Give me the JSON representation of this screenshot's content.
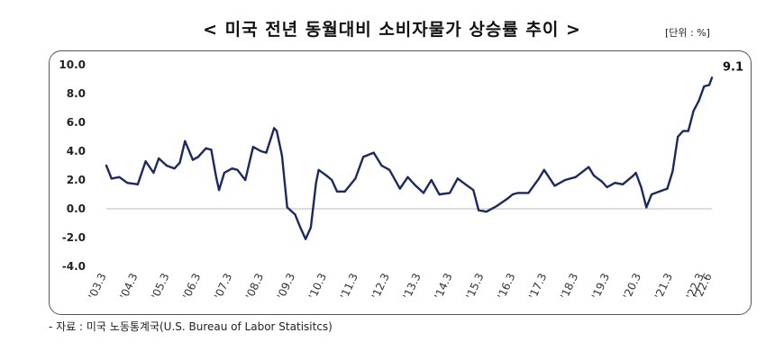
{
  "header": {
    "title": "< 미국 전년 동월대비 소비자물가 상승률 추이 >",
    "unit": "[단위 : %]"
  },
  "footer": {
    "source": "- 자료 : 미국 노동통계국(U.S. Bureau of Labor Statisitcs)"
  },
  "colors": {
    "line": "#1b2a5e",
    "axis": "#b8b8b8",
    "frame": "#555555"
  },
  "chart_data": {
    "type": "line",
    "title": "미국 전년 동월대비 소비자물가 상승률 추이",
    "ylabel": "%",
    "ylim": [
      -4.0,
      10.0
    ],
    "yticks": [
      {
        "value": 10.0,
        "label": "10.0"
      },
      {
        "value": 8.0,
        "label": "8.0"
      },
      {
        "value": 6.0,
        "label": "6.0"
      },
      {
        "value": 4.0,
        "label": "4.0"
      },
      {
        "value": 2.0,
        "label": "2.0"
      },
      {
        "value": 0.0,
        "label": "0.0"
      },
      {
        "value": -2.0,
        "label": "-2.0"
      },
      {
        "value": -4.0,
        "label": "-4.0"
      }
    ],
    "xlim": [
      "2003-03",
      "2022-06"
    ],
    "xticks": [
      {
        "date": "2003-03",
        "label": "'03.3"
      },
      {
        "date": "2004-03",
        "label": "'04.3"
      },
      {
        "date": "2005-03",
        "label": "'05.3"
      },
      {
        "date": "2006-03",
        "label": "'06.3"
      },
      {
        "date": "2007-03",
        "label": "'07.3"
      },
      {
        "date": "2008-03",
        "label": "'08.3"
      },
      {
        "date": "2009-03",
        "label": "'09.3"
      },
      {
        "date": "2010-03",
        "label": "'10.3"
      },
      {
        "date": "2011-03",
        "label": "'11.3"
      },
      {
        "date": "2012-03",
        "label": "'12.3"
      },
      {
        "date": "2013-03",
        "label": "'13.3"
      },
      {
        "date": "2014-03",
        "label": "'14.3"
      },
      {
        "date": "2015-03",
        "label": "'15.3"
      },
      {
        "date": "2016-03",
        "label": "'16.3"
      },
      {
        "date": "2017-03",
        "label": "'17.3"
      },
      {
        "date": "2018-03",
        "label": "'18.3"
      },
      {
        "date": "2019-03",
        "label": "'19.3"
      },
      {
        "date": "2020-03",
        "label": "'20.3"
      },
      {
        "date": "2021-03",
        "label": "'21.3"
      },
      {
        "date": "2022-03",
        "label": "'22.3"
      },
      {
        "date": "2022-06",
        "label": "'22.6"
      }
    ],
    "annotation": {
      "date": "2022-06",
      "label": "9.1"
    },
    "grid": false,
    "series": [
      {
        "points": [
          [
            "2003-03",
            3.0
          ],
          [
            "2003-05",
            2.1
          ],
          [
            "2003-08",
            2.2
          ],
          [
            "2003-11",
            1.8
          ],
          [
            "2004-03",
            1.7
          ],
          [
            "2004-06",
            3.3
          ],
          [
            "2004-09",
            2.5
          ],
          [
            "2004-11",
            3.5
          ],
          [
            "2005-02",
            3.0
          ],
          [
            "2005-05",
            2.8
          ],
          [
            "2005-07",
            3.2
          ],
          [
            "2005-09",
            4.7
          ],
          [
            "2005-12",
            3.4
          ],
          [
            "2006-02",
            3.6
          ],
          [
            "2006-05",
            4.2
          ],
          [
            "2006-07",
            4.1
          ],
          [
            "2006-09",
            2.1
          ],
          [
            "2006-10",
            1.3
          ],
          [
            "2006-12",
            2.5
          ],
          [
            "2007-03",
            2.8
          ],
          [
            "2007-05",
            2.7
          ],
          [
            "2007-08",
            2.0
          ],
          [
            "2007-11",
            4.3
          ],
          [
            "2008-02",
            4.0
          ],
          [
            "2008-04",
            3.9
          ],
          [
            "2008-07",
            5.6
          ],
          [
            "2008-08",
            5.4
          ],
          [
            "2008-10",
            3.7
          ],
          [
            "2008-12",
            0.1
          ],
          [
            "2009-03",
            -0.4
          ],
          [
            "2009-05",
            -1.3
          ],
          [
            "2009-07",
            -2.1
          ],
          [
            "2009-09",
            -1.3
          ],
          [
            "2009-11",
            1.8
          ],
          [
            "2009-12",
            2.7
          ],
          [
            "2010-03",
            2.3
          ],
          [
            "2010-05",
            2.0
          ],
          [
            "2010-07",
            1.2
          ],
          [
            "2010-10",
            1.2
          ],
          [
            "2011-02",
            2.1
          ],
          [
            "2011-05",
            3.6
          ],
          [
            "2011-09",
            3.9
          ],
          [
            "2011-12",
            3.0
          ],
          [
            "2012-03",
            2.7
          ],
          [
            "2012-07",
            1.4
          ],
          [
            "2012-10",
            2.2
          ],
          [
            "2013-01",
            1.6
          ],
          [
            "2013-04",
            1.1
          ],
          [
            "2013-07",
            2.0
          ],
          [
            "2013-10",
            1.0
          ],
          [
            "2014-02",
            1.1
          ],
          [
            "2014-05",
            2.1
          ],
          [
            "2014-08",
            1.7
          ],
          [
            "2014-11",
            1.3
          ],
          [
            "2015-01",
            -0.1
          ],
          [
            "2015-04",
            -0.2
          ],
          [
            "2015-08",
            0.2
          ],
          [
            "2015-12",
            0.7
          ],
          [
            "2016-02",
            1.0
          ],
          [
            "2016-04",
            1.1
          ],
          [
            "2016-08",
            1.1
          ],
          [
            "2016-12",
            2.1
          ],
          [
            "2017-02",
            2.7
          ],
          [
            "2017-06",
            1.6
          ],
          [
            "2017-10",
            2.0
          ],
          [
            "2018-02",
            2.2
          ],
          [
            "2018-07",
            2.9
          ],
          [
            "2018-09",
            2.3
          ],
          [
            "2018-12",
            1.9
          ],
          [
            "2019-02",
            1.5
          ],
          [
            "2019-05",
            1.8
          ],
          [
            "2019-08",
            1.7
          ],
          [
            "2019-12",
            2.3
          ],
          [
            "2020-01",
            2.5
          ],
          [
            "2020-03",
            1.5
          ],
          [
            "2020-05",
            0.1
          ],
          [
            "2020-07",
            1.0
          ],
          [
            "2020-10",
            1.2
          ],
          [
            "2021-01",
            1.4
          ],
          [
            "2021-03",
            2.6
          ],
          [
            "2021-05",
            5.0
          ],
          [
            "2021-07",
            5.4
          ],
          [
            "2021-09",
            5.4
          ],
          [
            "2021-11",
            6.8
          ],
          [
            "2022-01",
            7.5
          ],
          [
            "2022-03",
            8.5
          ],
          [
            "2022-05",
            8.6
          ],
          [
            "2022-06",
            9.1
          ]
        ]
      }
    ]
  }
}
